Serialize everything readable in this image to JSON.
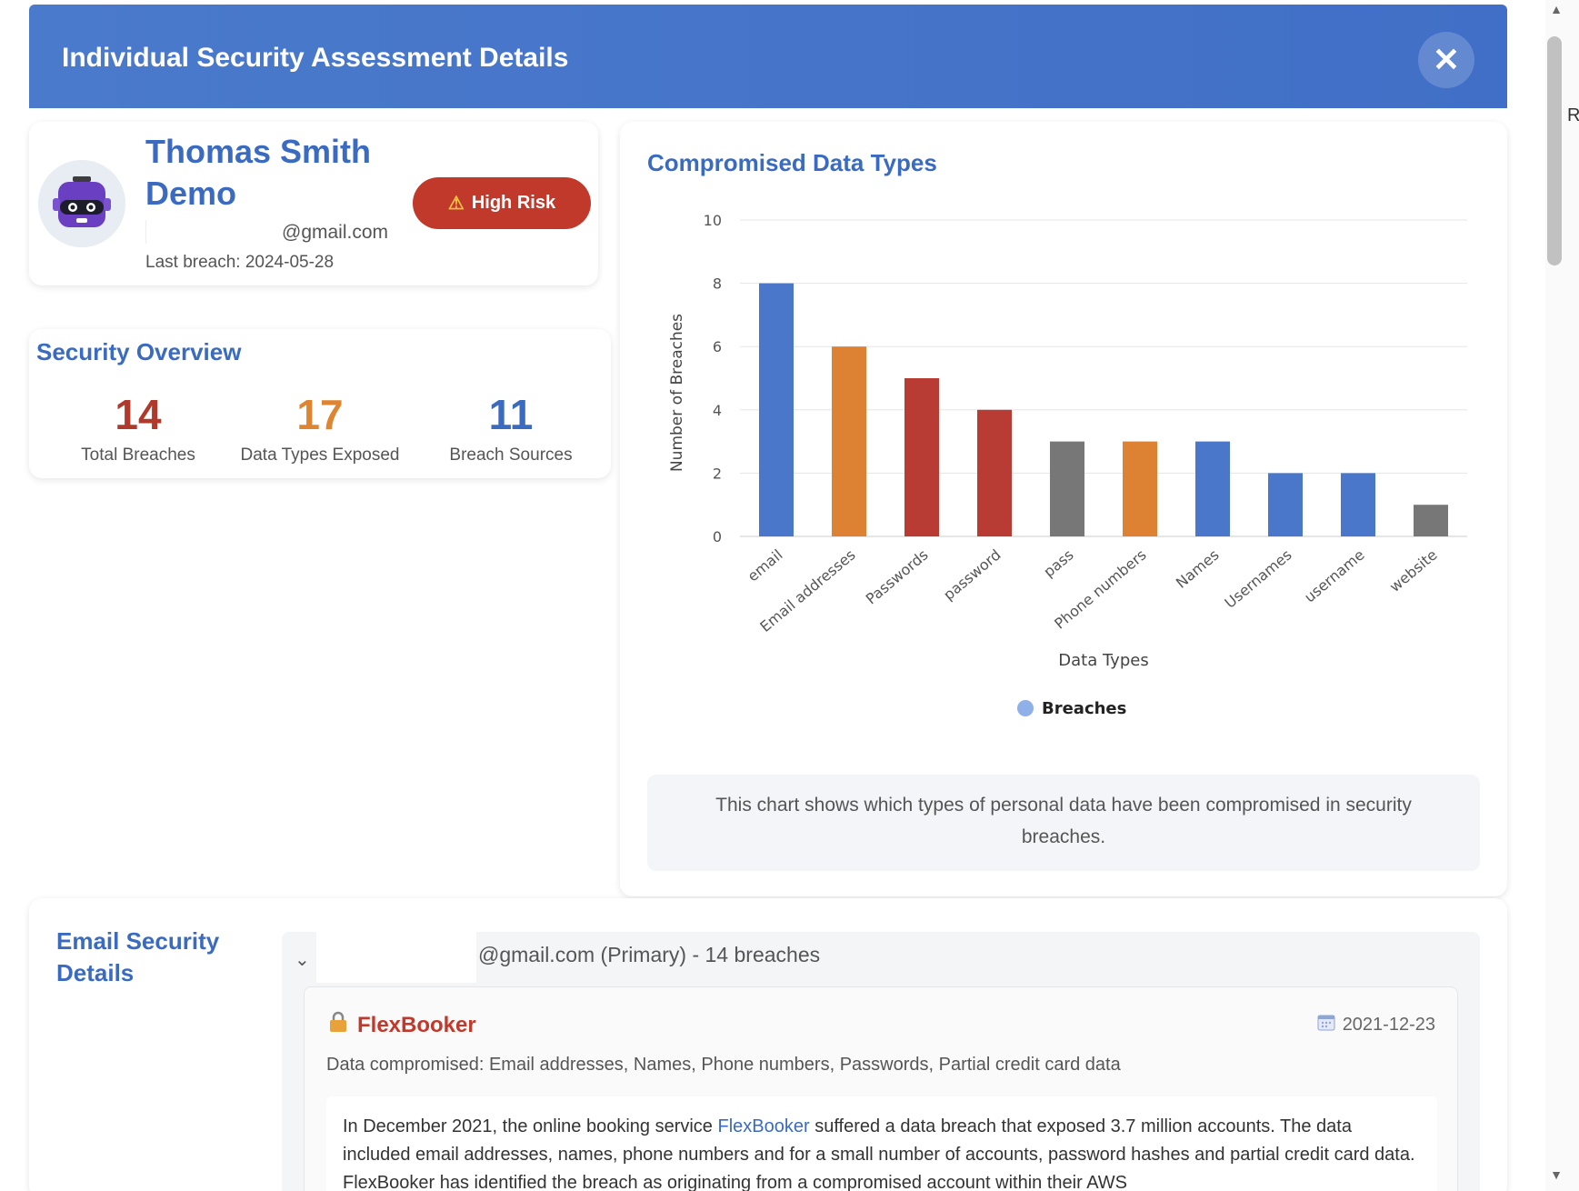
{
  "modal": {
    "title": "Individual Security Assessment Details",
    "close_symbol": "✕"
  },
  "profile": {
    "name": "Thomas Smith Demo",
    "email_domain": "@gmail.com",
    "last_breach": "Last breach: 2024-05-28",
    "risk_label": "High Risk",
    "risk_icon": "⚠"
  },
  "overview": {
    "title": "Security Overview",
    "stats": [
      {
        "value": "14",
        "label": "Total Breaches",
        "color": "#b0392b"
      },
      {
        "value": "17",
        "label": "Data Types Exposed",
        "color": "#de8531"
      },
      {
        "value": "11",
        "label": "Breach Sources",
        "color": "#3a6bc0"
      }
    ]
  },
  "chart": {
    "title": "Compromised Data Types",
    "note": "This chart shows which types of personal data have been compromised in security breaches."
  },
  "chart_data": {
    "type": "bar",
    "title": "Compromised Data Types",
    "categories": [
      "email",
      "Email addresses",
      "Passwords",
      "password",
      "pass",
      "Phone numbers",
      "Names",
      "Usernames",
      "username",
      "website"
    ],
    "series": [
      {
        "name": "Breaches",
        "values": [
          8,
          6,
          5,
          4,
          3,
          3,
          3,
          2,
          2,
          1
        ]
      }
    ],
    "bar_colors": [
      "#4a77c9",
      "#dd8232",
      "#b83b34",
      "#b83b34",
      "#777777",
      "#dd8232",
      "#4a77c9",
      "#4a77c9",
      "#4a77c9",
      "#777777"
    ],
    "xlabel": "Data Types",
    "ylabel": "Number of Breaches",
    "ylim": [
      0,
      10
    ],
    "yticks": [
      0,
      2,
      4,
      6,
      8,
      10
    ],
    "legend": {
      "label": "Breaches",
      "color": "#8fb0e8",
      "position": "bottom"
    }
  },
  "email_section": {
    "title": "Email Security Details",
    "account_label": "@gmail.com (Primary) - 14 breaches",
    "breach": {
      "name": "FlexBooker",
      "date": "2021-12-23",
      "data_compromised": "Data compromised: Email addresses, Names, Phone numbers, Passwords, Partial credit card data",
      "desc_before": "In December 2021, the online booking service ",
      "desc_link": "FlexBooker",
      "desc_after": " suffered a data breach that exposed 3.7 million accounts. The data included email addresses, names, phone numbers and for a small number of accounts, password hashes and partial credit card data. FlexBooker has identified the breach as originating from a compromised account within their AWS"
    }
  },
  "edge": {
    "text": "Ri"
  }
}
